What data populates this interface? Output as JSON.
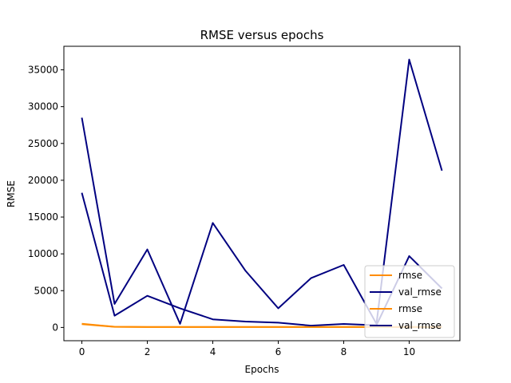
{
  "chart_data": {
    "type": "line",
    "title": "RMSE versus epochs",
    "xlabel": "Epochs",
    "ylabel": "RMSE",
    "xlim": [
      -0.55,
      11.55
    ],
    "ylim": [
      -1800,
      38200
    ],
    "xticks": [
      0,
      2,
      4,
      6,
      8,
      10
    ],
    "yticks": [
      0,
      5000,
      10000,
      15000,
      20000,
      25000,
      30000,
      35000
    ],
    "grid": false,
    "legend_placement": "lower-right",
    "x": [
      0,
      1,
      2,
      3,
      4,
      5,
      6,
      7,
      8,
      9,
      10,
      11
    ],
    "series": [
      {
        "name": "rmse",
        "color": "#ff8c00",
        "values": [
          500,
          100,
          60,
          60,
          60,
          60,
          60,
          60,
          60,
          60,
          60,
          60
        ]
      },
      {
        "name": "val_rmse",
        "color": "#000080",
        "values": [
          18300,
          1600,
          4300,
          2600,
          1100,
          800,
          650,
          250,
          480,
          300,
          9700,
          5300
        ]
      },
      {
        "name": "rmse",
        "color": "#ff8c00",
        "values": [
          450,
          90,
          50,
          50,
          50,
          50,
          50,
          50,
          50,
          50,
          50,
          50
        ]
      },
      {
        "name": "val_rmse",
        "color": "#000080",
        "values": [
          28500,
          3200,
          10600,
          500,
          14200,
          7700,
          2600,
          6700,
          8500,
          500,
          36400,
          21300
        ]
      }
    ]
  }
}
